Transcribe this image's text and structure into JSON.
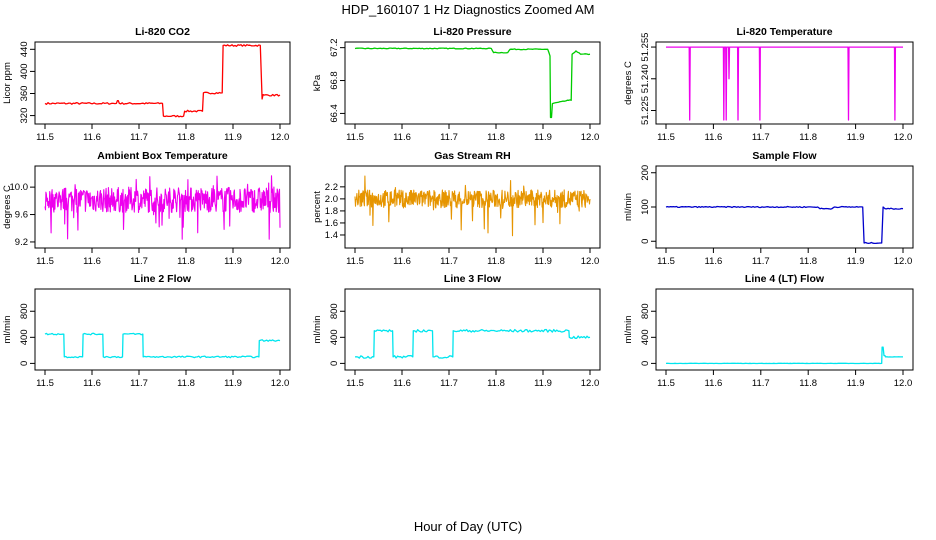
{
  "figure": {
    "title": "HDP_160107  1 Hz Diagnostics Zoomed AM",
    "xlabel": "Hour of Day (UTC)",
    "colors": {
      "axis": "#000000",
      "background": "#ffffff"
    }
  },
  "chart_data": [
    {
      "id": "co2",
      "type": "line",
      "title": "Li-820 CO2",
      "ylabel": "Licor ppm",
      "color": "#ff0000",
      "xlim": [
        11.5,
        12.0
      ],
      "ylim": [
        312,
        446
      ],
      "xticks": [
        "11.5",
        "11.6",
        "11.7",
        "11.8",
        "11.9",
        "12.0"
      ],
      "yticks": [
        "320",
        "360",
        "400",
        "440"
      ],
      "yticks_rotated": true,
      "noise": 1.5,
      "x": [
        11.5,
        11.652,
        11.654,
        11.656,
        11.658,
        11.75,
        11.752,
        11.795,
        11.797,
        11.835,
        11.837,
        11.877,
        11.879,
        11.958,
        11.962,
        11.964,
        11.966,
        12.0
      ],
      "y": [
        342,
        342,
        347,
        347,
        342,
        342,
        319,
        319,
        328,
        328,
        361,
        361,
        447,
        447,
        350,
        358,
        357,
        357
      ]
    },
    {
      "id": "pressure",
      "type": "line",
      "title": "Li-820 Pressure",
      "ylabel": "kPa",
      "color": "#00cc00",
      "xlim": [
        11.5,
        12.0
      ],
      "ylim": [
        66.32,
        67.22
      ],
      "xticks": [
        "11.5",
        "11.6",
        "11.7",
        "11.8",
        "11.9",
        "12.0"
      ],
      "yticks": [
        "66.4",
        "66.8",
        "67.2"
      ],
      "yticks_rotated": true,
      "noise": 0.005,
      "x": [
        11.5,
        11.79,
        11.795,
        11.825,
        11.83,
        11.91,
        11.915,
        11.916,
        11.918,
        11.92,
        11.955,
        11.96,
        11.962,
        11.97,
        11.98,
        12.0
      ],
      "y": [
        67.19,
        67.19,
        67.14,
        67.14,
        67.18,
        67.18,
        67.1,
        66.35,
        66.35,
        66.52,
        66.56,
        66.56,
        67.12,
        67.16,
        67.12,
        67.12
      ]
    },
    {
      "id": "temperature",
      "type": "line",
      "title": "Li-820 Temperature",
      "ylabel": "degrees C",
      "color": "#ee00ee",
      "xlim": [
        11.5,
        12.0
      ],
      "ylim": [
        51.2205,
        51.2555
      ],
      "xticks": [
        "11.5",
        "11.6",
        "11.7",
        "11.8",
        "11.9",
        "12.0"
      ],
      "yticks": [
        "51.225",
        "51.240",
        "51.255"
      ],
      "yticks_rotated": true,
      "noise": 0,
      "x": [
        11.5,
        11.549,
        11.55,
        11.551,
        11.621,
        11.622,
        11.623,
        11.626,
        11.627,
        11.628,
        11.632,
        11.633,
        11.634,
        11.651,
        11.652,
        11.653,
        11.697,
        11.698,
        11.699,
        11.884,
        11.885,
        11.886,
        11.982,
        11.983,
        11.984,
        12.0
      ],
      "y": [
        51.255,
        51.255,
        51.2205,
        51.255,
        51.255,
        51.2205,
        51.255,
        51.255,
        51.2205,
        51.255,
        51.255,
        51.24,
        51.255,
        51.255,
        51.2205,
        51.255,
        51.255,
        51.2205,
        51.255,
        51.255,
        51.2205,
        51.255,
        51.255,
        51.2205,
        51.255,
        51.255
      ]
    },
    {
      "id": "ambient",
      "type": "line",
      "title": "Ambient Box Temperature",
      "ylabel": "degrees C",
      "color": "#ee00ee",
      "xlim": [
        11.5,
        12.0
      ],
      "ylim": [
        9.17,
        10.25
      ],
      "xticks": [
        "11.5",
        "11.6",
        "11.7",
        "11.8",
        "11.9",
        "12.0"
      ],
      "yticks": [
        "9.2",
        "9.6",
        "10.0"
      ],
      "yticks_rotated": false,
      "noise": 0,
      "x": [
        11.5,
        12.0
      ],
      "y": [
        9.8,
        9.8
      ],
      "band": [
        9.63,
        10.0
      ],
      "spike_range": [
        9.2,
        10.2
      ]
    },
    {
      "id": "rh",
      "type": "line",
      "title": "Gas Stream RH",
      "ylabel": "percent",
      "color": "#e69500",
      "xlim": [
        11.5,
        12.0
      ],
      "ylim": [
        1.25,
        2.48
      ],
      "xticks": [
        "11.5",
        "11.6",
        "11.7",
        "11.8",
        "11.9",
        "12.0"
      ],
      "yticks": [
        "1.4",
        "1.6",
        "1.8",
        "2.0",
        "2.2"
      ],
      "yticks_rotated": false,
      "noise": 0,
      "x": [
        11.5,
        12.0
      ],
      "y": [
        2.0,
        2.0
      ],
      "band": [
        1.85,
        2.15
      ],
      "spike_range": [
        1.3,
        2.4
      ]
    },
    {
      "id": "sample",
      "type": "line",
      "title": "Sample Flow",
      "ylabel": "ml/min",
      "color": "#0000cc",
      "xlim": [
        11.5,
        12.0
      ],
      "ylim": [
        -8,
        208
      ],
      "xticks": [
        "11.5",
        "11.6",
        "11.7",
        "11.8",
        "11.9",
        "12.0"
      ],
      "yticks": [
        "0",
        "100",
        "200"
      ],
      "yticks_rotated": true,
      "noise": 1.5,
      "x": [
        11.5,
        11.82,
        11.825,
        11.85,
        11.855,
        11.915,
        11.918,
        11.955,
        11.958,
        11.962,
        12.0
      ],
      "y": [
        100,
        100,
        95,
        95,
        100,
        100,
        -5,
        -5,
        100,
        95,
        95
      ]
    },
    {
      "id": "line2",
      "type": "line",
      "title": "Line 2 Flow",
      "ylabel": "ml/min",
      "color": "#00e5ee",
      "xlim": [
        11.5,
        12.0
      ],
      "ylim": [
        -40,
        1080
      ],
      "xticks": [
        "11.5",
        "11.6",
        "11.7",
        "11.8",
        "11.9",
        "12.0"
      ],
      "yticks": [
        "0",
        "400",
        "800"
      ],
      "yticks_rotated": true,
      "noise": 12,
      "x": [
        11.5,
        11.54,
        11.541,
        11.58,
        11.581,
        11.623,
        11.624,
        11.665,
        11.666,
        11.708,
        11.709,
        11.955,
        11.956,
        12.0
      ],
      "y": [
        450,
        450,
        100,
        100,
        450,
        450,
        100,
        100,
        450,
        450,
        100,
        100,
        350,
        350
      ]
    },
    {
      "id": "line3",
      "type": "line",
      "title": "Line 3 Flow",
      "ylabel": "ml/min",
      "color": "#00e5ee",
      "xlim": [
        11.5,
        12.0
      ],
      "ylim": [
        -40,
        1080
      ],
      "xticks": [
        "11.5",
        "11.6",
        "11.7",
        "11.8",
        "11.9",
        "12.0"
      ],
      "yticks": [
        "0",
        "400",
        "800"
      ],
      "yticks_rotated": true,
      "noise": 20,
      "x": [
        11.5,
        11.54,
        11.541,
        11.58,
        11.581,
        11.623,
        11.624,
        11.665,
        11.666,
        11.708,
        11.709,
        11.955,
        11.956,
        12.0
      ],
      "y": [
        100,
        100,
        500,
        500,
        100,
        100,
        500,
        500,
        100,
        100,
        500,
        500,
        400,
        400
      ]
    },
    {
      "id": "line4",
      "type": "line",
      "title": "Line 4 (LT) Flow",
      "ylabel": "ml/min",
      "color": "#00e5ee",
      "xlim": [
        11.5,
        12.0
      ],
      "ylim": [
        -40,
        1080
      ],
      "xticks": [
        "11.5",
        "11.6",
        "11.7",
        "11.8",
        "11.9",
        "12.0"
      ],
      "yticks": [
        "0",
        "400",
        "800"
      ],
      "yticks_rotated": true,
      "noise": 2,
      "x": [
        11.5,
        11.955,
        11.956,
        11.958,
        11.96,
        11.962,
        11.963,
        12.0
      ],
      "y": [
        0,
        0,
        250,
        250,
        120,
        120,
        100,
        100
      ]
    }
  ]
}
